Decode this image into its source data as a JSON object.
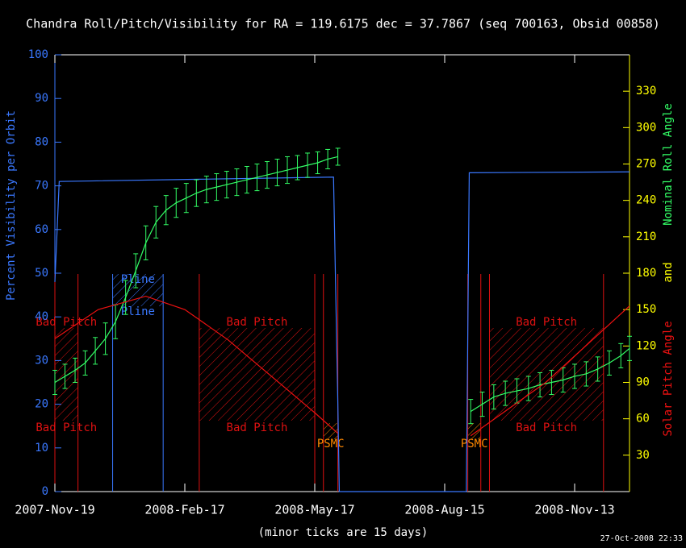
{
  "chart_data": {
    "type": "line",
    "title": "Chandra Roll/Pitch/Visibility for RA = 119.6175 dec = 37.7867 (seq 700163, Obsid 00858)",
    "xlabel": "(minor ticks are 15 days)",
    "timestamp": "27-Oct-2008 22:33",
    "y2label_joiner": "and",
    "xlim": [
      0,
      398
    ],
    "xticks": [
      {
        "value": 0,
        "label": "2007-Nov-19"
      },
      {
        "value": 90,
        "label": "2008-Feb-17"
      },
      {
        "value": 180,
        "label": "2008-May-17"
      },
      {
        "value": 270,
        "label": "2008-Aug-15"
      },
      {
        "value": 360,
        "label": "2008-Nov-13"
      }
    ],
    "ylim": [
      0,
      100
    ],
    "yticks": [
      0,
      10,
      20,
      30,
      40,
      50,
      60,
      70,
      80,
      90,
      100
    ],
    "y2lim": [
      0,
      360
    ],
    "y2ticks": [
      30,
      60,
      90,
      120,
      150,
      180,
      210,
      240,
      270,
      300,
      330
    ],
    "series": [
      {
        "name": "Percent Visibility per Orbit",
        "color": "#3a78ff",
        "axis": "y",
        "x": [
          0,
          3,
          193,
          196,
          197,
          285,
          287,
          398
        ],
        "values": [
          48,
          71,
          72,
          20,
          0,
          0,
          73,
          73.2
        ]
      },
      {
        "name": "Nominal Roll Angle",
        "color": "#33ff66",
        "axis": "y2",
        "x": [
          0,
          7,
          14,
          21,
          28,
          35,
          42,
          49,
          56,
          63,
          70,
          77,
          84,
          91,
          98,
          105,
          112,
          119,
          126,
          133,
          140,
          147,
          154,
          161,
          168,
          175,
          182,
          189,
          196,
          240,
          288,
          296,
          304,
          312,
          320,
          328,
          336,
          344,
          352,
          360,
          368,
          376,
          384,
          392,
          398
        ],
        "values": [
          90,
          95,
          100,
          106,
          116,
          126,
          140,
          160,
          182,
          205,
          222,
          232,
          238,
          242,
          246,
          249,
          251,
          253,
          255,
          257,
          259,
          261,
          263,
          265,
          267,
          269,
          271,
          274,
          276,
          null,
          66,
          72,
          78,
          81,
          83,
          85,
          88,
          90,
          92,
          95,
          97,
          101,
          106,
          112,
          118
        ],
        "errors": [
          10,
          10,
          10,
          10,
          11,
          13,
          14,
          14,
          14,
          14,
          13,
          12,
          12,
          12,
          11,
          11,
          11,
          11,
          11,
          11,
          11,
          11,
          11,
          11,
          10,
          10,
          9,
          8,
          7,
          null,
          10,
          10,
          10,
          10,
          10,
          10,
          10,
          10,
          10,
          10,
          10,
          10,
          10,
          10,
          10
        ]
      },
      {
        "name": "Solar Pitch Angle",
        "color": "#ee1111",
        "axis": "y2",
        "x": [
          0,
          30,
          63,
          90,
          120,
          150,
          180,
          196,
          240,
          288,
          340,
          398
        ],
        "values": [
          126,
          150,
          161,
          150,
          125,
          95,
          65,
          48,
          null,
          46,
          90,
          153
        ]
      }
    ],
    "regions": [
      {
        "label": "Bad Pitch",
        "start": 0,
        "end": 16,
        "color": "#dd1111"
      },
      {
        "label": "Pline",
        "start": 40,
        "end": 75,
        "color": "#3a78ff"
      },
      {
        "label": "Bad Pitch",
        "start": 100,
        "end": 180,
        "color": "#dd1111"
      },
      {
        "label": "PSMC",
        "start": 186,
        "end": 196,
        "color": "#ff8800"
      },
      {
        "label": "PSMC",
        "start": 286,
        "end": 295,
        "color": "#ff8800"
      },
      {
        "label": "Bad Pitch",
        "start": 301,
        "end": 380,
        "color": "#dd1111"
      }
    ]
  }
}
